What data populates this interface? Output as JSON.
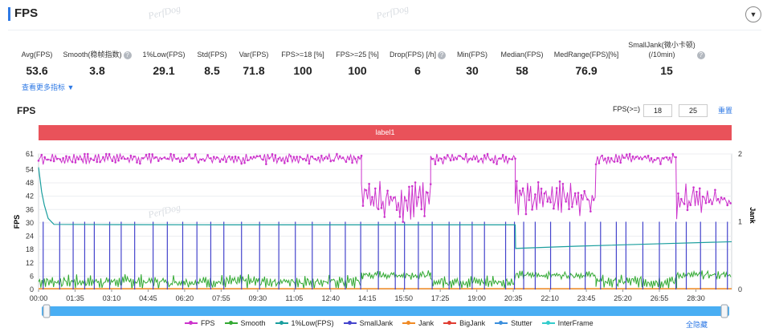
{
  "header": {
    "title": "FPS",
    "toggle_icon": "chevron-down-icon",
    "watermark": "PerfDog"
  },
  "metrics": [
    {
      "label": "Avg(FPS)",
      "value": "53.6",
      "help": false
    },
    {
      "label": "Smooth(稳帧指数)",
      "value": "3.8",
      "help": true
    },
    {
      "label": "1%Low(FPS)",
      "value": "29.1",
      "help": false
    },
    {
      "label": "Std(FPS)",
      "value": "8.5",
      "help": false
    },
    {
      "label": "Var(FPS)",
      "value": "71.8",
      "help": false
    },
    {
      "label": "FPS>=18 [%]",
      "value": "100",
      "help": false
    },
    {
      "label": "FPS>=25 [%]",
      "value": "100",
      "help": false
    },
    {
      "label": "Drop(FPS) [/h]",
      "value": "6",
      "help": true
    },
    {
      "label": "Min(FPS)",
      "value": "30",
      "help": false
    },
    {
      "label": "Median(FPS)",
      "value": "58",
      "help": false
    },
    {
      "label": "MedRange(FPS)[%]",
      "value": "76.9",
      "help": false
    },
    {
      "label": "SmallJank(微小卡顿)\n(/10min)",
      "value": "15",
      "help": true
    }
  ],
  "more_link": "查看更多指标 ▼",
  "chart_section": {
    "title": "FPS",
    "threshold_label": "FPS(>=)",
    "threshold_1": "18",
    "threshold_2": "25",
    "reset_label": "重置",
    "band_label": "label1"
  },
  "legend_hide_all": "全隐藏",
  "colors": {
    "FPS": "#cc33cc",
    "Smooth": "#33aa33",
    "1%Low(FPS)": "#1a9e9e",
    "SmallJank": "#4444cc",
    "Jank": "#f08a24",
    "BigJank": "#e03c31",
    "Stutter": "#3b8fdc",
    "InterFrame": "#33cccc",
    "band": "#e9525a",
    "accent": "#2f7ae5"
  },
  "chart_data": {
    "type": "line",
    "title": "FPS",
    "ylabel": "FPS",
    "y2label": "Jank",
    "ylim": [
      0,
      61
    ],
    "y2lim": [
      0,
      2
    ],
    "yticks": [
      0,
      6,
      12,
      18,
      24,
      30,
      36,
      42,
      48,
      54,
      61
    ],
    "y2ticks": [
      0,
      1,
      2
    ],
    "xlim": [
      0,
      1803
    ],
    "x_tick_labels": [
      "00:00",
      "01:35",
      "03:10",
      "04:45",
      "06:20",
      "07:55",
      "09:30",
      "11:05",
      "12:40",
      "14:15",
      "15:50",
      "17:25",
      "19:00",
      "20:35",
      "22:10",
      "23:45",
      "25:20",
      "26:55",
      "28:30"
    ],
    "x_tick_seconds": [
      0,
      95,
      190,
      285,
      380,
      475,
      570,
      665,
      760,
      855,
      950,
      1045,
      1140,
      1235,
      1330,
      1425,
      1520,
      1615,
      1710
    ],
    "legend": [
      "FPS",
      "Smooth",
      "1%Low(FPS)",
      "SmallJank",
      "Jank",
      "BigJank",
      "Stutter",
      "InterFrame"
    ],
    "series": [
      {
        "name": "FPS",
        "axis": "left",
        "segments": [
          {
            "x": [
              0,
              840
            ],
            "base": 59,
            "amp": 2
          },
          {
            "x": [
              840,
              1020
            ],
            "base": 40,
            "amp": 7
          },
          {
            "x": [
              1020,
              1240
            ],
            "base": 59,
            "amp": 2
          },
          {
            "x": [
              1240,
              1450
            ],
            "base": 41,
            "amp": 6
          },
          {
            "x": [
              1450,
              1660
            ],
            "base": 59,
            "amp": 2
          },
          {
            "x": [
              1660,
              1803
            ],
            "base": 40,
            "amp": 6
          }
        ]
      },
      {
        "name": "1%Low(FPS)",
        "axis": "left",
        "points": [
          [
            0,
            55
          ],
          [
            8,
            44
          ],
          [
            15,
            38
          ],
          [
            25,
            32
          ],
          [
            40,
            29.3
          ],
          [
            200,
            29.2
          ],
          [
            500,
            29.1
          ],
          [
            900,
            29.1
          ],
          [
            1240,
            29.1
          ],
          [
            1241,
            18.5
          ],
          [
            1400,
            19.5
          ],
          [
            1600,
            20.5
          ],
          [
            1803,
            21.5
          ]
        ]
      },
      {
        "name": "Smooth",
        "axis": "left",
        "segments": [
          {
            "x": [
              0,
              840
            ],
            "base": 3.5,
            "amp": 2.5
          },
          {
            "x": [
              840,
              1020
            ],
            "base": 6.5,
            "amp": 1.5
          },
          {
            "x": [
              1020,
              1240
            ],
            "base": 3.5,
            "amp": 2.5
          },
          {
            "x": [
              1240,
              1450
            ],
            "base": 6.5,
            "amp": 1.5
          },
          {
            "x": [
              1450,
              1660
            ],
            "base": 3.5,
            "amp": 2.5
          },
          {
            "x": [
              1660,
              1803
            ],
            "base": 6.5,
            "amp": 1.5
          }
        ]
      },
      {
        "name": "SmallJank",
        "axis": "right",
        "x": [
          12,
          55,
          90,
          120,
          145,
          185,
          215,
          250,
          298,
          335,
          375,
          412,
          448,
          482,
          528,
          575,
          625,
          668,
          712,
          758,
          798,
          838,
          884,
          928,
          952,
          988,
          1024,
          1068,
          1096,
          1128,
          1160,
          1215,
          1238,
          1262,
          1292,
          1332,
          1382,
          1422,
          1462,
          1503,
          1528,
          1572,
          1615,
          1658,
          1685,
          1722,
          1762,
          1792
        ],
        "value": 1
      },
      {
        "name": "Jank",
        "axis": "right",
        "value": 0
      },
      {
        "name": "BigJank",
        "axis": "right",
        "value": 0
      },
      {
        "name": "Stutter",
        "axis": "right",
        "value": 0
      },
      {
        "name": "InterFrame",
        "axis": "right",
        "value": 0
      }
    ]
  }
}
